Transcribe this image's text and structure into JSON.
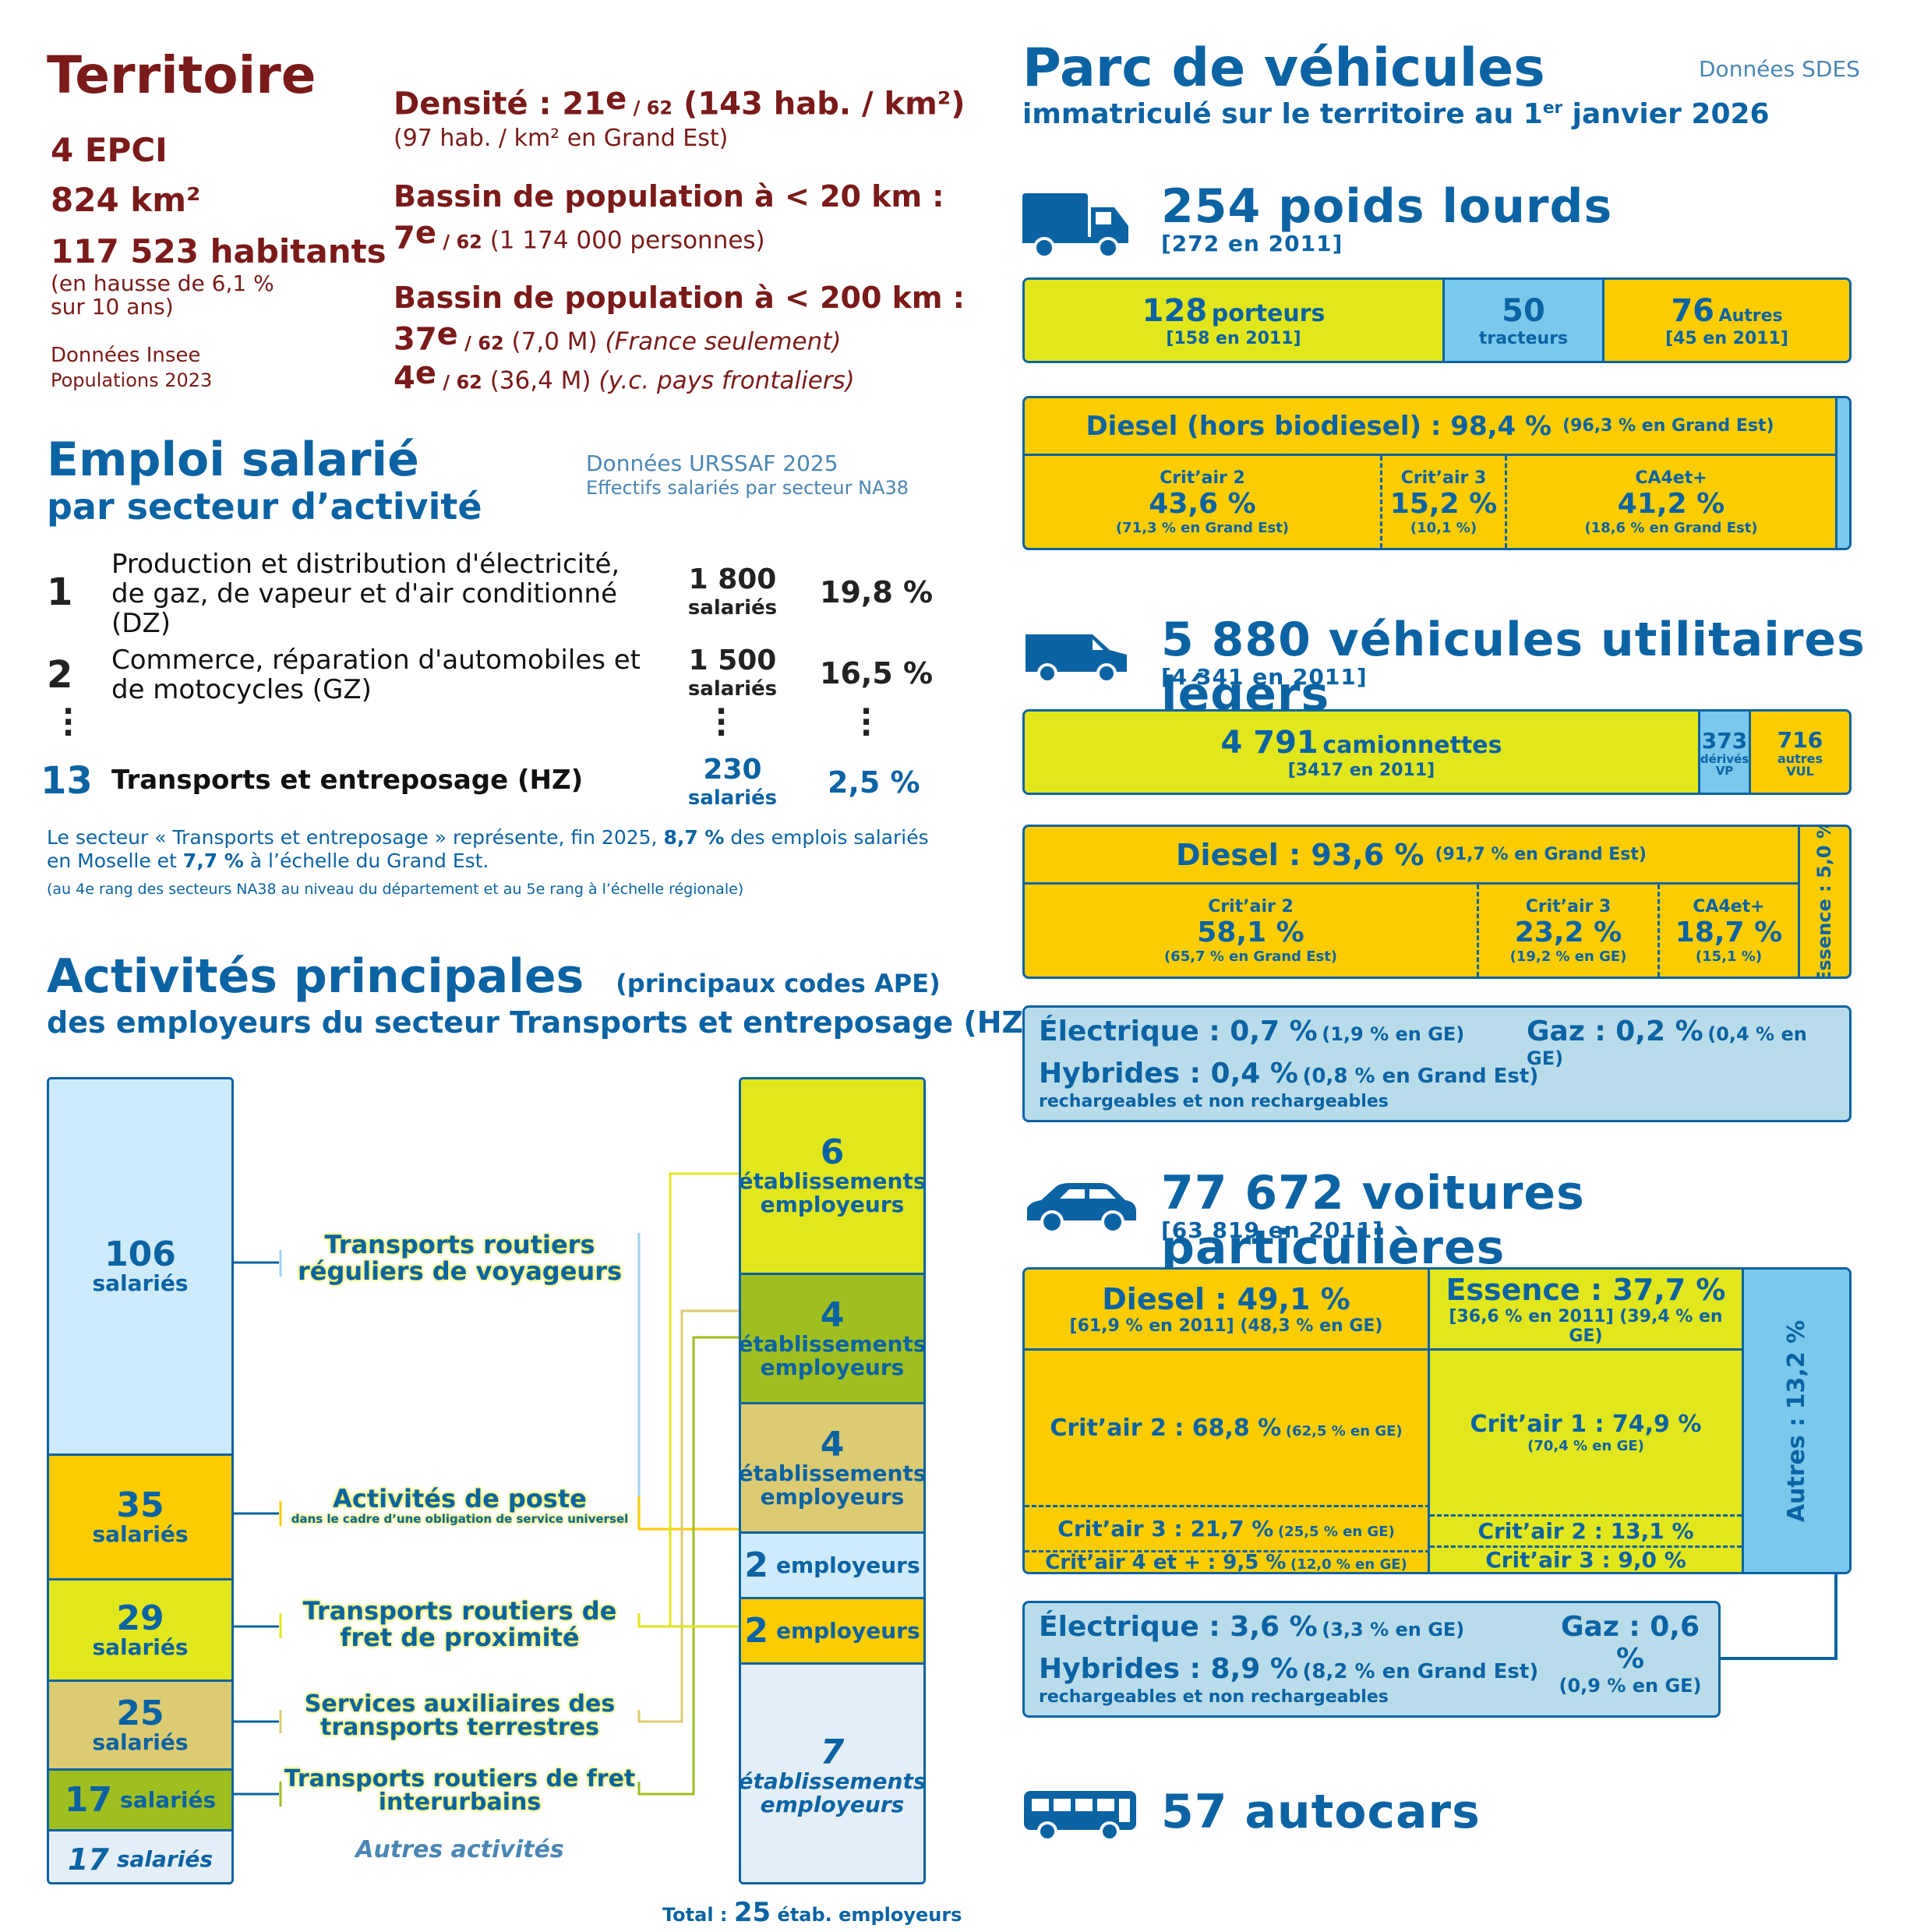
{
  "territoire": {
    "title": "Territoire",
    "epci": "4 EPCI",
    "area": "824 km²",
    "habitants": "117 523 habitants",
    "hausse_line1": "(en hausse de 6,1 %",
    "hausse_line2": "sur 10 ans)",
    "source_line1": "Données Insee",
    "source_line2": "Populations 2023",
    "densite_label": "Densité : 21",
    "densite_rank_sup": "e",
    "densite_rank_of": " / 62",
    "densite_value": " (143 hab. / km²)",
    "densite_ge": "(97 hab. / km² en Grand Est)",
    "bassin20_label": "Bassin de population à < 20 km :",
    "bassin20_rank": "7",
    "bassin20_sup": "e",
    "bassin20_of": " / 62",
    "bassin20_value": " (1 174 000 personnes)",
    "bassin200_label": "Bassin de population à < 200 km :",
    "bassin200_rank1": "37",
    "bassin200_sup1": "e",
    "bassin200_of1": " / 62",
    "bassin200_value1": " (7,0 M)",
    "bassin200_note1": " (France seulement)",
    "bassin200_rank2": "4",
    "bassin200_sup2": "e",
    "bassin200_of2": " / 62",
    "bassin200_value2": " (36,4 M)",
    "bassin200_note2": " (y.c. pays frontaliers)"
  },
  "emploi": {
    "title1": "Emploi salarié",
    "title2": "par secteur d’activité",
    "source1": "Données URSSAF 2025",
    "source2": "Effectifs salariés par secteur NA38",
    "rows": [
      {
        "rank": "1",
        "label1": "Production et distribution d'électricité,",
        "label2": "de gaz, de vapeur et d'air conditionné",
        "label3": "(DZ)",
        "count": "1 800",
        "unit": "salariés",
        "pct": "19,8 %"
      },
      {
        "rank": "2",
        "label1": "Commerce, réparation d'automobiles et",
        "label2": "de motocycles (GZ)",
        "count": "1 500",
        "unit": "salariés",
        "pct": "16,5 %"
      },
      {
        "rank": "13",
        "label1": "Transports et entreposage (HZ)",
        "count": "230",
        "unit": "salariés",
        "pct": "2,5 %"
      }
    ],
    "note1a": "Le secteur « Transports et entreposage » représente, fin 2025, ",
    "note1b": "8,7 %",
    "note1c": " des emplois salariés",
    "note2a": "en Moselle et ",
    "note2b": "7,7 %",
    "note2c": " à l’échelle du Grand Est.",
    "note3": "(au 4e rang des secteurs NA38 au niveau du département et au 5e rang à l’échelle régionale)"
  },
  "activites": {
    "title1": "Activités principales",
    "title_paren": "(principaux codes APE)",
    "title2": "des employeurs du secteur Transports et entreposage (HZ)",
    "left": [
      {
        "n": "106",
        "u": "salariés"
      },
      {
        "n": "35",
        "u": "salariés"
      },
      {
        "n": "29",
        "u": "salariés"
      },
      {
        "n": "25",
        "u": "salariés"
      },
      {
        "n": "17",
        "u": "salariés"
      },
      {
        "n": "17",
        "u": "salariés"
      }
    ],
    "labels": [
      {
        "l1": "Transports routiers",
        "l2": "réguliers de voyageurs"
      },
      {
        "l1": "Activités de poste",
        "l2": "dans le cadre d’une obligation de service universel"
      },
      {
        "l1": "Transports routiers de",
        "l2": "fret de proximité"
      },
      {
        "l1": "Services auxiliaires des",
        "l2": "transports terrestres"
      },
      {
        "l1": "Transports routiers de fret",
        "l2": "interurbains"
      }
    ],
    "autres": "Autres activités",
    "right": [
      {
        "n": "6",
        "l1": "établissements",
        "l2": "employeurs"
      },
      {
        "n": "4",
        "l1": "établissements",
        "l2": "employeurs"
      },
      {
        "n": "4",
        "l1": "établissements",
        "l2": "employeurs"
      },
      {
        "n": "2",
        "l1": "employeurs"
      },
      {
        "n": "2",
        "l1": "employeurs"
      },
      {
        "n": "7",
        "l1": "établissements",
        "l2": "employeurs"
      }
    ],
    "total_label": "Total : ",
    "total_value": "25",
    "total_unit": " étab. employeurs"
  },
  "parc": {
    "title": "Parc de véhicules",
    "subtitle": "immatriculé sur le territoire au 1",
    "subtitle_sup": "er",
    "subtitle_end": " janvier 2026",
    "source": "Données SDES",
    "pl": {
      "title": "254 poids lourds",
      "sub": "[272 en 2011]",
      "porteurs_n": "128",
      "porteurs_l": "porteurs",
      "porteurs_s": "[158 en 2011]",
      "tracteurs_n": "50",
      "tracteurs_l": "tracteurs",
      "autres_n": "76",
      "autres_l": "Autres",
      "autres_s": "[45 en 2011]",
      "diesel": "Diesel (hors biodiesel) : 98,4 %",
      "diesel_ge": "(96,3 % en Grand Est)",
      "c2_l": "Crit’air 2",
      "c2_v": "43,6 %",
      "c2_s": "(71,3 % en Grand Est)",
      "c3_l": "Crit’air 3",
      "c3_v": "15,2 %",
      "c3_s": "(10,1 %)",
      "c4_l": "CA4et+",
      "c4_v": "41,2 %",
      "c4_s": "(18,6 % en Grand Est)"
    },
    "vul": {
      "title": "5 880 véhicules utilitaires légers",
      "sub": "[4 341 en 2011]",
      "cam_n": "4 791",
      "cam_l": "camionnettes",
      "cam_s": "[3417 en 2011]",
      "vp_n": "373",
      "vp_l1": "dérivés",
      "vp_l2": "VP",
      "aut_n": "716",
      "aut_l1": "autres",
      "aut_l2": "VUL",
      "diesel": "Diesel : 93,6 %",
      "diesel_ge": "(91,7 % en Grand Est)",
      "essence": "Essence : 5,0 %",
      "c2_l": "Crit’air 2",
      "c2_v": "58,1 %",
      "c2_s": "(65,7 % en Grand Est)",
      "c3_l": "Crit’air 3",
      "c3_v": "23,2 %",
      "c3_s": "(19,2 % en GE)",
      "c4_l": "CA4et+",
      "c4_v": "18,7 %",
      "c4_s": "(15,1 %)",
      "elec": "Électrique : 0,7 %",
      "elec_ge": "(1,9 % en GE)",
      "gaz": "Gaz : 0,2 %",
      "gaz_ge": "(0,4 % en GE)",
      "hyb": "Hybrides : 0,4 %",
      "hyb_ge": "(0,8 % en Grand Est)",
      "hyb_note": "rechargeables et non rechargeables"
    },
    "vp": {
      "title": "77 672 voitures particulières",
      "sub": "[63 819 en 2011]",
      "diesel": "Diesel : 49,1 %",
      "diesel_s": "[61,9 % en 2011]   (48,3 % en GE)",
      "essence": "Essence : 37,7 %",
      "essence_s": "[36,6 % en 2011]   (39,4 % en GE)",
      "autres": "Autres : 13,2 %",
      "d_c2": "Crit’air 2 : 68,8 %",
      "d_c2_s": "(62,5 % en GE)",
      "d_c3": "Crit’air 3 : 21,7 %",
      "d_c3_s": "(25,5 % en GE)",
      "d_c4": "Crit’air 4 et + : 9,5 %",
      "d_c4_s": "(12,0 % en GE)",
      "e_c1": "Crit’air 1 : 74,9 %",
      "e_c1_s": "(70,4 % en GE)",
      "e_c2": "Crit’air 2 : 13,1 %",
      "e_c3": "Crit’air 3 : 9,0 %",
      "elec": "Électrique : 3,6 %",
      "elec_ge": "(3,3 % en GE)",
      "gaz": "Gaz : 0,6 %",
      "gaz_ge": "(0,9 % en GE)",
      "hyb": "Hybrides : 8,9 %",
      "hyb_ge": "(8,2 % en Grand Est)",
      "hyb_note": "rechargeables et non rechargeables"
    },
    "autocars": {
      "title": "57 autocars"
    }
  }
}
